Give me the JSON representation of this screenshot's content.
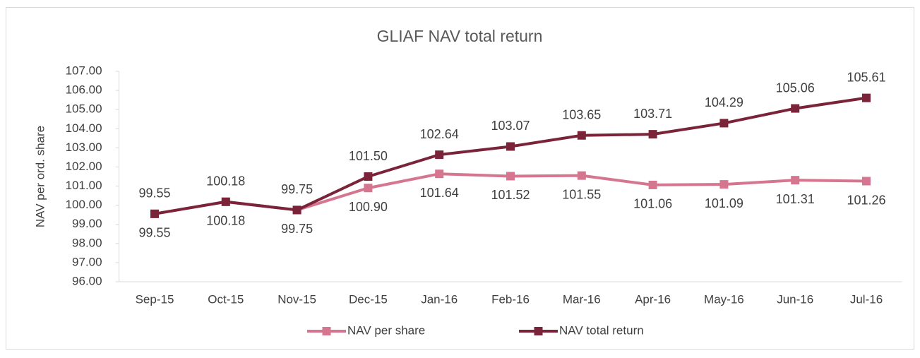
{
  "chart_data": {
    "type": "line",
    "title": "GLIAF NAV total return",
    "ylabel": "NAV per ord. share",
    "categories": [
      "Sep-15",
      "Oct-15",
      "Nov-15",
      "Dec-15",
      "Jan-16",
      "Feb-16",
      "Mar-16",
      "Apr-16",
      "May-16",
      "Jun-16",
      "Jul-16"
    ],
    "series": [
      {
        "name": "NAV per share",
        "color": "#d6758f",
        "values": [
          99.55,
          100.18,
          99.75,
          100.9,
          101.64,
          101.52,
          101.55,
          101.06,
          101.09,
          101.31,
          101.26
        ],
        "value_labels": [
          "99.55",
          "100.18",
          "99.75",
          "100.90",
          "101.64",
          "101.52",
          "101.55",
          "101.06",
          "101.09",
          "101.31",
          "101.26"
        ]
      },
      {
        "name": "NAV total return",
        "color": "#7b2338",
        "values": [
          99.55,
          100.18,
          99.75,
          101.5,
          102.64,
          103.07,
          103.65,
          103.71,
          104.29,
          105.06,
          105.61
        ],
        "value_labels": [
          "99.55",
          "100.18",
          "99.75",
          "101.50",
          "102.64",
          "103.07",
          "103.65",
          "103.71",
          "104.29",
          "105.06",
          "105.61"
        ]
      }
    ],
    "ylim": [
      96,
      107
    ],
    "yticks": [
      {
        "value": 96,
        "label": "96.00"
      },
      {
        "value": 97,
        "label": "97.00"
      },
      {
        "value": 98,
        "label": "98.00"
      },
      {
        "value": 99,
        "label": "99.00"
      },
      {
        "value": 100,
        "label": "100.00"
      },
      {
        "value": 101,
        "label": "101.00"
      },
      {
        "value": 102,
        "label": "102.00"
      },
      {
        "value": 103,
        "label": "103.00"
      },
      {
        "value": 104,
        "label": "104.00"
      },
      {
        "value": 105,
        "label": "105.00"
      },
      {
        "value": 106,
        "label": "106.00"
      },
      {
        "value": 107,
        "label": "107.00"
      }
    ],
    "grid": false,
    "legend": "bottom"
  }
}
